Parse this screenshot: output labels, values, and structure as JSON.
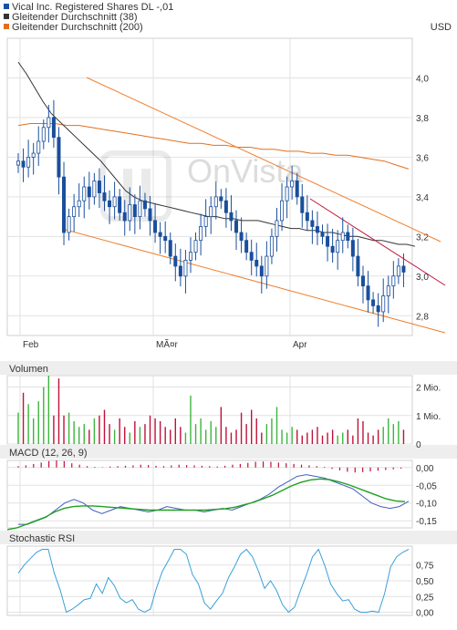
{
  "header": {
    "legend": [
      {
        "label": "Vical Inc. Registered Shares DL -,01",
        "color": "#1a4f9c"
      },
      {
        "label": "Gleitender Durchschnitt (38)",
        "color": "#333333"
      },
      {
        "label": "Gleitender Durchschnitt (200)",
        "color": "#e07020"
      }
    ],
    "currency": "USD",
    "watermark": "OnVista"
  },
  "chart_data": [
    {
      "type": "candlestick",
      "panel": "price",
      "x_labels": [
        "Feb",
        "MÃ¤r",
        "Apr"
      ],
      "ylim": [
        2.7,
        4.2
      ],
      "yticks": [
        "4,0",
        "3,8",
        "3,6",
        "3,4",
        "3,2",
        "3,0",
        "2,8"
      ],
      "ytick_values": [
        4.0,
        3.8,
        3.6,
        3.4,
        3.2,
        3.0,
        2.8
      ],
      "grid": true,
      "series": [
        {
          "name": "Vical Inc. Registered Shares DL -,01",
          "values": [
            3.58,
            3.55,
            3.6,
            3.62,
            3.68,
            3.75,
            3.8,
            3.7,
            3.5,
            3.22,
            3.3,
            3.35,
            3.38,
            3.45,
            3.4,
            3.48,
            3.42,
            3.38,
            3.35,
            3.4,
            3.32,
            3.28,
            3.36,
            3.3,
            3.38,
            3.34,
            3.28,
            3.22,
            3.2,
            3.18,
            3.1,
            3.05,
            3.0,
            3.08,
            3.12,
            3.18,
            3.25,
            3.3,
            3.35,
            3.4,
            3.38,
            3.32,
            3.28,
            3.22,
            3.18,
            3.12,
            3.08,
            3.05,
            3.0,
            3.1,
            3.2,
            3.28,
            3.38,
            3.45,
            3.48,
            3.4,
            3.32,
            3.28,
            3.25,
            3.22,
            3.2,
            3.15,
            3.12,
            3.18,
            3.22,
            3.18,
            3.1,
            3.0,
            2.95,
            2.88,
            2.85,
            2.82,
            2.9,
            2.95,
            3.0,
            3.05,
            3.02
          ]
        },
        {
          "name": "Gleitender Durchschnitt (38)",
          "values": [
            4.08,
            4.02,
            3.95,
            3.88,
            3.82,
            3.78,
            3.74,
            3.7,
            3.66,
            3.62,
            3.58,
            3.53,
            3.48,
            3.43,
            3.4,
            3.38,
            3.37,
            3.36,
            3.35,
            3.34,
            3.33,
            3.32,
            3.31,
            3.3,
            3.3,
            3.29,
            3.29,
            3.28,
            3.28,
            3.28,
            3.27,
            3.26,
            3.25,
            3.24,
            3.24,
            3.23,
            3.23,
            3.22,
            3.22,
            3.21,
            3.2,
            3.2,
            3.19,
            3.18,
            3.18,
            3.17,
            3.16,
            3.16,
            3.15
          ]
        },
        {
          "name": "Gleitender Durchschnitt (200)",
          "values": [
            3.76,
            3.77,
            3.77,
            3.77,
            3.76,
            3.76,
            3.75,
            3.74,
            3.73,
            3.72,
            3.71,
            3.7,
            3.69,
            3.68,
            3.67,
            3.67,
            3.66,
            3.66,
            3.65,
            3.65,
            3.64,
            3.64,
            3.63,
            3.63,
            3.62,
            3.62,
            3.61,
            3.61,
            3.6,
            3.59,
            3.58,
            3.56,
            3.54
          ]
        }
      ]
    },
    {
      "type": "bar",
      "panel": "volume",
      "title": "Volumen",
      "ylim": [
        0,
        2400000
      ],
      "yticks": [
        "2 Mio.",
        "1 Mio.",
        "0"
      ],
      "ytick_values": [
        2000000,
        1000000,
        0
      ],
      "series": [
        {
          "name": "Volumen",
          "values": [
            1.1,
            1.8,
            1.4,
            0.9,
            1.5,
            2.0,
            2.4,
            1.0,
            2.3,
            1.0,
            1.1,
            0.8,
            0.6,
            0.7,
            0.5,
            0.9,
            1.0,
            1.2,
            0.7,
            0.5,
            0.9,
            0.6,
            0.4,
            0.8,
            0.6,
            0.7,
            1.0,
            0.9,
            0.8,
            0.6,
            0.5,
            0.9,
            0.6,
            0.4,
            1.7,
            0.7,
            0.9,
            0.5,
            0.8,
            0.6,
            1.3,
            0.6,
            0.4,
            0.5,
            1.1,
            0.7,
            1.2,
            0.9,
            0.4,
            0.7,
            0.9,
            1.3,
            0.5,
            0.4,
            0.6,
            0.5,
            0.3,
            0.4,
            0.5,
            0.6,
            0.3,
            0.4,
            0.5,
            0.3,
            0.4,
            0.5,
            0.3,
            0.9,
            0.8,
            0.4,
            0.3,
            0.5,
            0.6,
            0.9,
            0.7,
            0.8,
            0.5
          ]
        }
      ]
    },
    {
      "type": "line",
      "panel": "macd",
      "title": "MACD (12, 26, 9)",
      "ylim": [
        -0.17,
        0.02
      ],
      "yticks": [
        "0,00",
        "-0,05",
        "-0,10",
        "-0,15"
      ],
      "ytick_values": [
        0.0,
        -0.05,
        -0.1,
        -0.15
      ],
      "series": [
        {
          "name": "MACD",
          "values": [
            -0.16,
            -0.16,
            -0.15,
            -0.14,
            -0.12,
            -0.1,
            -0.09,
            -0.1,
            -0.12,
            -0.13,
            -0.12,
            -0.11,
            -0.115,
            -0.12,
            -0.125,
            -0.12,
            -0.11,
            -0.115,
            -0.12,
            -0.12,
            -0.125,
            -0.12,
            -0.115,
            -0.12,
            -0.11,
            -0.1,
            -0.09,
            -0.075,
            -0.055,
            -0.04,
            -0.025,
            -0.02,
            -0.025,
            -0.03,
            -0.04,
            -0.05,
            -0.06,
            -0.08,
            -0.1,
            -0.11,
            -0.115,
            -0.11,
            -0.095
          ]
        },
        {
          "name": "Signal",
          "values": [
            -0.175,
            -0.17,
            -0.16,
            -0.15,
            -0.14,
            -0.125,
            -0.115,
            -0.11,
            -0.108,
            -0.108,
            -0.11,
            -0.112,
            -0.114,
            -0.116,
            -0.118,
            -0.12,
            -0.12,
            -0.12,
            -0.12,
            -0.12,
            -0.12,
            -0.12,
            -0.118,
            -0.116,
            -0.112,
            -0.105,
            -0.098,
            -0.088,
            -0.078,
            -0.065,
            -0.052,
            -0.042,
            -0.035,
            -0.032,
            -0.034,
            -0.04,
            -0.048,
            -0.058,
            -0.068,
            -0.078,
            -0.088,
            -0.094,
            -0.096
          ]
        },
        {
          "name": "Histogram",
          "values": [
            0.004,
            0.006,
            0.01,
            0.014,
            0.018,
            0.02,
            0.018,
            0.012,
            0.008,
            0.004,
            0.002,
            0.001,
            0.003,
            0.004,
            0.005,
            0.006,
            0.008,
            0.007,
            0.005,
            0.004,
            0.006,
            0.008,
            0.007,
            0.006,
            0.005,
            0.004,
            0.003,
            0.005,
            0.008,
            0.01,
            0.013,
            0.016,
            0.017,
            0.016,
            0.014,
            0.012,
            0.01,
            0.008,
            0.006,
            0.004,
            0.002,
            -0.004,
            -0.008,
            -0.012,
            -0.014,
            -0.013,
            -0.011,
            -0.009,
            -0.007,
            -0.005,
            -0.003
          ]
        }
      ]
    },
    {
      "type": "line",
      "panel": "stochastic",
      "title": "Stochastic RSI",
      "ylim": [
        -0.05,
        1.05
      ],
      "yticks": [
        "0,75",
        "0,50",
        "0,25",
        "0,00"
      ],
      "ytick_values": [
        0.75,
        0.5,
        0.25,
        0.0
      ],
      "series": [
        {
          "name": "Stochastic RSI",
          "values": [
            0.62,
            0.75,
            0.85,
            0.95,
            1.0,
            1.0,
            0.62,
            0.35,
            0.0,
            0.05,
            0.12,
            0.2,
            0.22,
            0.45,
            0.3,
            0.55,
            0.42,
            0.22,
            0.15,
            0.2,
            0.05,
            0.0,
            0.05,
            0.38,
            0.65,
            0.82,
            1.0,
            1.0,
            0.92,
            0.6,
            0.45,
            0.15,
            0.05,
            0.18,
            0.3,
            0.55,
            0.72,
            0.92,
            1.0,
            0.88,
            0.65,
            0.38,
            0.5,
            0.35,
            0.12,
            0.0,
            0.08,
            0.35,
            0.6,
            0.88,
            1.0,
            0.75,
            0.45,
            0.3,
            0.18,
            0.2,
            0.05,
            0.0,
            0.0,
            0.02,
            0.0,
            0.3,
            0.72,
            0.88,
            0.95,
            1.0
          ]
        }
      ]
    }
  ]
}
